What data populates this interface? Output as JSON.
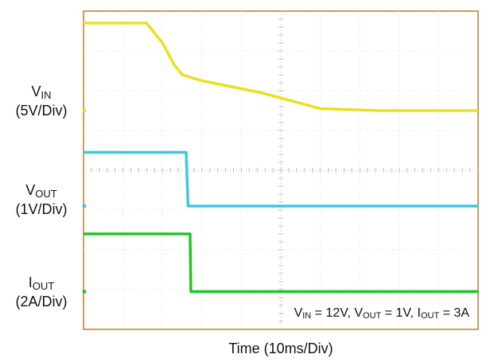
{
  "chart_data": {
    "type": "line",
    "xlabel": "Time (10ms/Div)",
    "x_divisions": 10,
    "y_divisions": 8,
    "grid": true,
    "annotation": {
      "parts": [
        {
          "main": "V",
          "sub": "IN",
          "rest": " = 12V, "
        },
        {
          "main": "V",
          "sub": "OUT",
          "rest": " = 1V, "
        },
        {
          "main": "I",
          "sub": "OUT",
          "rest": " = 3A"
        }
      ]
    },
    "channels": [
      {
        "name_main": "V",
        "name_sub": "IN",
        "scale": "(5V/Div)",
        "color": "#e8e020",
        "points": [
          [
            0,
            0.3
          ],
          [
            1.6,
            0.3
          ],
          [
            2.0,
            0.8
          ],
          [
            2.3,
            1.35
          ],
          [
            2.5,
            1.6
          ],
          [
            3.0,
            1.75
          ],
          [
            4.5,
            2.05
          ],
          [
            6.0,
            2.45
          ],
          [
            7.5,
            2.5
          ],
          [
            10,
            2.5
          ]
        ]
      },
      {
        "name_main": "V",
        "name_sub": "OUT",
        "scale": "(1V/Div)",
        "color": "#3ec8e0",
        "points": [
          [
            0,
            3.55
          ],
          [
            2.6,
            3.55
          ],
          [
            2.65,
            4.9
          ],
          [
            10,
            4.9
          ]
        ]
      },
      {
        "name_main": "I",
        "name_sub": "OUT",
        "scale": "(2A/Div)",
        "color": "#22c422",
        "points": [
          [
            0,
            5.6
          ],
          [
            2.7,
            5.6
          ],
          [
            2.72,
            7.05
          ],
          [
            10,
            7.05
          ]
        ]
      }
    ]
  }
}
